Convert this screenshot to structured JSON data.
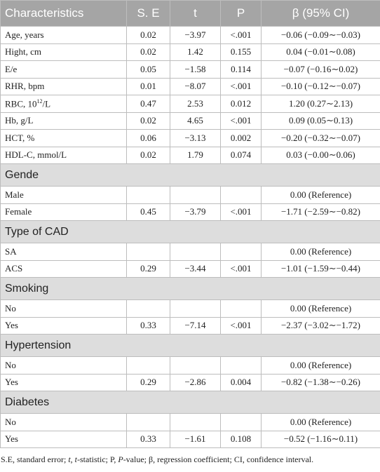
{
  "table": {
    "header": [
      "Characteristics",
      "S. E",
      "t",
      "P",
      "β (95% CI)"
    ],
    "rows": [
      {
        "label": "Age, years",
        "se": "0.02",
        "t": "−3.97",
        "p": "<.001",
        "ci": "−0.06 (−0.09∼−0.03)"
      },
      {
        "label": "Hight, cm",
        "se": "0.02",
        "t": "1.42",
        "p": "0.155",
        "ci": "0.04 (−0.01∼0.08)"
      },
      {
        "label": "E/e",
        "se": "0.05",
        "t": "−1.58",
        "p": "0.114",
        "ci": "−0.07 (−0.16∼0.02)"
      },
      {
        "label": "RHR, bpm",
        "se": "0.01",
        "t": "−8.07",
        "p": "<.001",
        "ci": "−0.10 (−0.12∼−0.07)"
      },
      {
        "label": "RBC, 10",
        "label_sup": "12",
        "label_tail": "/L",
        "se": "0.47",
        "t": "2.53",
        "p": "0.012",
        "ci": "1.20 (0.27∼2.13)"
      },
      {
        "label": "Hb, g/L",
        "se": "0.02",
        "t": "4.65",
        "p": "<.001",
        "ci": "0.09 (0.05∼0.13)"
      },
      {
        "label": "HCT, %",
        "se": "0.06",
        "t": "−3.13",
        "p": "0.002",
        "ci": "−0.20 (−0.32∼−0.07)"
      },
      {
        "label": "HDL-C, mmol/L",
        "se": "0.02",
        "t": "1.79",
        "p": "0.074",
        "ci": "0.03 (−0.00∼0.06)"
      },
      {
        "section": "Gende"
      },
      {
        "label": "Male",
        "ci": "0.00 (Reference)"
      },
      {
        "label": "Female",
        "se": "0.45",
        "t": "−3.79",
        "p": "<.001",
        "ci": "−1.71 (−2.59∼−0.82)"
      },
      {
        "section": "Type of CAD"
      },
      {
        "label": "SA",
        "ci": "0.00 (Reference)"
      },
      {
        "label": "ACS",
        "se": "0.29",
        "t": "−3.44",
        "p": "<.001",
        "ci": "−1.01 (−1.59∼−0.44)"
      },
      {
        "section": "Smoking"
      },
      {
        "label": "No",
        "ci": "0.00 (Reference)"
      },
      {
        "label": "Yes",
        "se": "0.33",
        "t": "−7.14",
        "p": "<.001",
        "ci": "−2.37 (−3.02∼−1.72)"
      },
      {
        "section": "Hypertension"
      },
      {
        "label": "No",
        "ci": "0.00 (Reference)"
      },
      {
        "label": "Yes",
        "se": "0.29",
        "t": "−2.86",
        "p": "0.004",
        "ci": "−0.82 (−1.38∼−0.26)"
      },
      {
        "section": "Diabetes"
      },
      {
        "label": "No",
        "ci": "0.00 (Reference)"
      },
      {
        "label": "Yes",
        "se": "0.33",
        "t": "−1.61",
        "p": "0.108",
        "ci": "−0.52 (−1.16∼0.11)"
      }
    ],
    "footnote": [
      {
        "text": "S.E, standard error; "
      },
      {
        "text": "t",
        "italic": true
      },
      {
        "text": ", "
      },
      {
        "text": "t",
        "italic": true
      },
      {
        "text": "-statistic; P, "
      },
      {
        "text": "P",
        "italic": true
      },
      {
        "text": "-value; β, regression coefficient; CI, confidence interval."
      }
    ]
  }
}
